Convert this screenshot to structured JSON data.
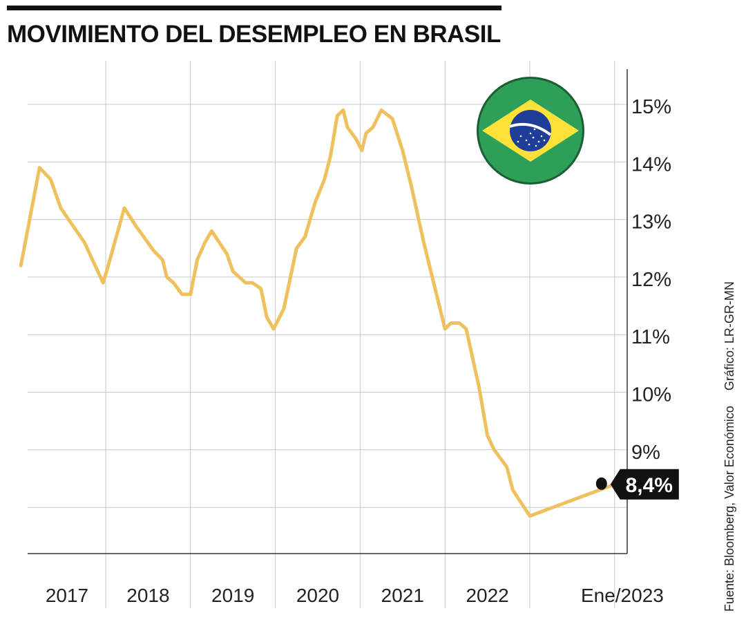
{
  "title": "MOVIMIENTO DEL DESEMPLEO EN BRASIL",
  "source": {
    "fuente": "Fuente: Bloomberg, Valor Económico",
    "grafico": "Gráfico: LR-GR-MN"
  },
  "colors": {
    "line": "#EFC15E",
    "grid": "#C8C8C8",
    "axis": "#333333",
    "text": "#222222",
    "flag_green": "#2E9F58",
    "flag_yellow": "#FFE13A",
    "flag_blue": "#1F3E99",
    "callout_bg": "#111111",
    "callout_text": "#FFFFFF"
  },
  "flag_icon": "brazil-flag-icon",
  "chart_data": {
    "type": "line",
    "title": "MOVIMIENTO DEL DESEMPLEO EN BRASIL",
    "y_unit": "%",
    "ylim": [
      7.2,
      15.6
    ],
    "y_ticks": [
      9,
      10,
      11,
      12,
      13,
      14,
      15
    ],
    "y_tick_labels": [
      "9%",
      "10%",
      "11%",
      "12%",
      "13%",
      "14%",
      "15%"
    ],
    "y_gridlines": [
      8,
      9,
      10,
      11,
      12,
      13,
      14,
      15
    ],
    "y_axis_position": "right",
    "x_range": [
      2016.0,
      2023.07
    ],
    "x_ticks": [
      2017,
      2018,
      2019,
      2020,
      2021,
      2022,
      2023
    ],
    "x_tick_labels": [
      "2017",
      "2018",
      "2019",
      "2020",
      "2021",
      "2022",
      "Ene/2023"
    ],
    "grid": true,
    "series": [
      {
        "values": [
          [
            2016.0,
            12.2
          ],
          [
            2016.22,
            13.9
          ],
          [
            2016.35,
            13.7
          ],
          [
            2016.47,
            13.2
          ],
          [
            2016.75,
            12.6
          ],
          [
            2016.97,
            11.9
          ],
          [
            2017.03,
            12.2
          ],
          [
            2017.22,
            13.2
          ],
          [
            2017.35,
            12.9
          ],
          [
            2017.57,
            12.45
          ],
          [
            2017.67,
            12.3
          ],
          [
            2017.72,
            12.0
          ],
          [
            2017.8,
            11.9
          ],
          [
            2017.9,
            11.7
          ],
          [
            2018.0,
            11.7
          ],
          [
            2018.08,
            12.3
          ],
          [
            2018.17,
            12.6
          ],
          [
            2018.25,
            12.8
          ],
          [
            2018.43,
            12.4
          ],
          [
            2018.5,
            12.1
          ],
          [
            2018.65,
            11.9
          ],
          [
            2018.73,
            11.9
          ],
          [
            2018.83,
            11.8
          ],
          [
            2018.9,
            11.3
          ],
          [
            2018.98,
            11.1
          ],
          [
            2019.1,
            11.45
          ],
          [
            2019.25,
            12.5
          ],
          [
            2019.35,
            12.7
          ],
          [
            2019.47,
            13.3
          ],
          [
            2019.58,
            13.7
          ],
          [
            2019.65,
            14.1
          ],
          [
            2019.73,
            14.8
          ],
          [
            2019.8,
            14.9
          ],
          [
            2019.85,
            14.6
          ],
          [
            2019.95,
            14.4
          ],
          [
            2020.02,
            14.2
          ],
          [
            2020.07,
            14.5
          ],
          [
            2020.15,
            14.6
          ],
          [
            2020.25,
            14.9
          ],
          [
            2020.38,
            14.75
          ],
          [
            2020.5,
            14.2
          ],
          [
            2020.6,
            13.6
          ],
          [
            2020.75,
            12.6
          ],
          [
            2020.9,
            11.7
          ],
          [
            2021.0,
            11.1
          ],
          [
            2021.07,
            11.2
          ],
          [
            2021.17,
            11.2
          ],
          [
            2021.25,
            11.1
          ],
          [
            2021.4,
            10.1
          ],
          [
            2021.5,
            9.25
          ],
          [
            2021.58,
            9.0
          ],
          [
            2021.73,
            8.7
          ],
          [
            2021.8,
            8.3
          ],
          [
            2022.0,
            7.85
          ],
          [
            2023.0,
            8.4
          ]
        ]
      }
    ],
    "callout": {
      "x": 2023.0,
      "y": 8.4,
      "label": "8,4%"
    }
  }
}
